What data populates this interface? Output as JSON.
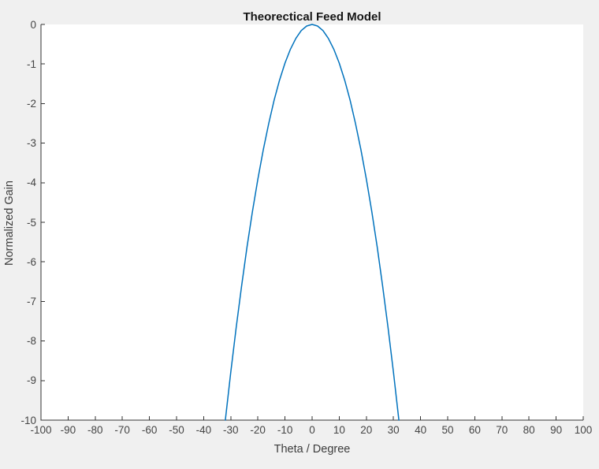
{
  "figure": {
    "background": "#f0f0f0"
  },
  "chart_data": {
    "type": "line",
    "title": "Theorectical Feed Model",
    "xlabel": "Theta / Degree",
    "ylabel": "Normalized Gain",
    "xlim": [
      -100,
      100
    ],
    "ylim": [
      -10,
      0
    ],
    "xticks": [
      -100,
      -90,
      -80,
      -70,
      -60,
      -50,
      -40,
      -30,
      -20,
      -10,
      0,
      10,
      20,
      30,
      40,
      50,
      60,
      70,
      80,
      90,
      100
    ],
    "yticks": [
      0,
      -1,
      -2,
      -3,
      -4,
      -5,
      -6,
      -7,
      -8,
      -9,
      -10
    ],
    "grid": false,
    "legend": null,
    "plot_bg": "#ffffff",
    "axis_color": "#333333",
    "line_color": "#0072BD",
    "series": [
      {
        "x": [
          -32,
          -30,
          -28,
          -26,
          -24,
          -22,
          -20,
          -18,
          -16,
          -14,
          -12,
          -10,
          -8,
          -6,
          -4,
          -2,
          0,
          2,
          4,
          6,
          8,
          10,
          12,
          14,
          16,
          18,
          20,
          22,
          24,
          26,
          28,
          30,
          32
        ],
        "y": [
          -10,
          -8.789,
          -7.656,
          -6.602,
          -5.625,
          -4.727,
          -3.906,
          -3.164,
          -2.5,
          -1.914,
          -1.406,
          -0.977,
          -0.625,
          -0.352,
          -0.156,
          -0.039,
          0,
          -0.039,
          -0.156,
          -0.352,
          -0.625,
          -0.977,
          -1.406,
          -1.914,
          -2.5,
          -3.164,
          -3.906,
          -4.727,
          -5.625,
          -6.602,
          -7.656,
          -8.789,
          -10
        ]
      }
    ]
  }
}
